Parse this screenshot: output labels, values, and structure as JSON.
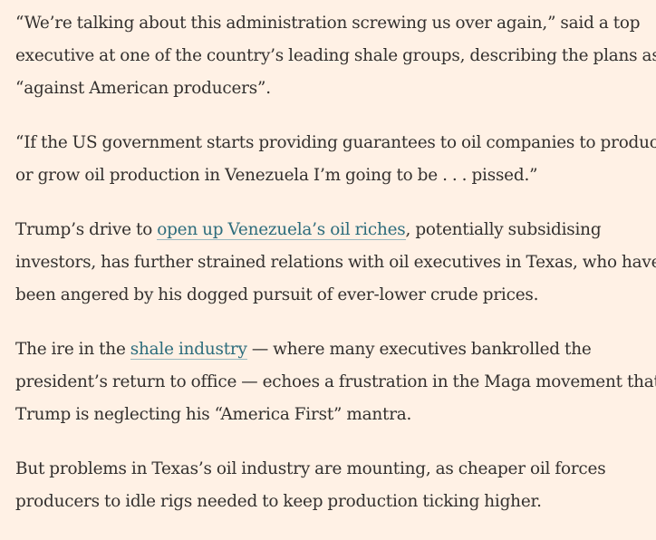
{
  "article": {
    "paragraphs": [
      {
        "lines": [
          "“We’re talking about this administration screwing us over again,” said a top",
          "executive at one of the country’s leading shale groups, describing the plans as",
          "“against American producers”."
        ]
      },
      {
        "lines": [
          "“If the US government starts providing guarantees to oil companies to produce",
          "or grow oil production in Venezuela I’m going to be . . . pissed.”"
        ]
      },
      {
        "line1_before": "Trump’s drive to ",
        "line1_link": "open up Venezuela’s oil riches",
        "line1_after": ", potentially subsidising",
        "line2": "investors, has further strained relations with oil executives in Texas, who have",
        "line3": "been angered by his dogged pursuit of ever-lower crude prices."
      },
      {
        "line1_before": "The ire in the ",
        "line1_link": "shale industry",
        "line1_after": " — where many executives bankrolled the",
        "line2": "president’s return to office — echoes a frustration in the Maga movement that",
        "line3": "Trump is neglecting his “America First” mantra."
      },
      {
        "lines": [
          "But problems in Texas’s oil industry are mounting, as cheaper oil forces",
          "producers to idle rigs needed to keep production ticking higher."
        ]
      }
    ]
  }
}
